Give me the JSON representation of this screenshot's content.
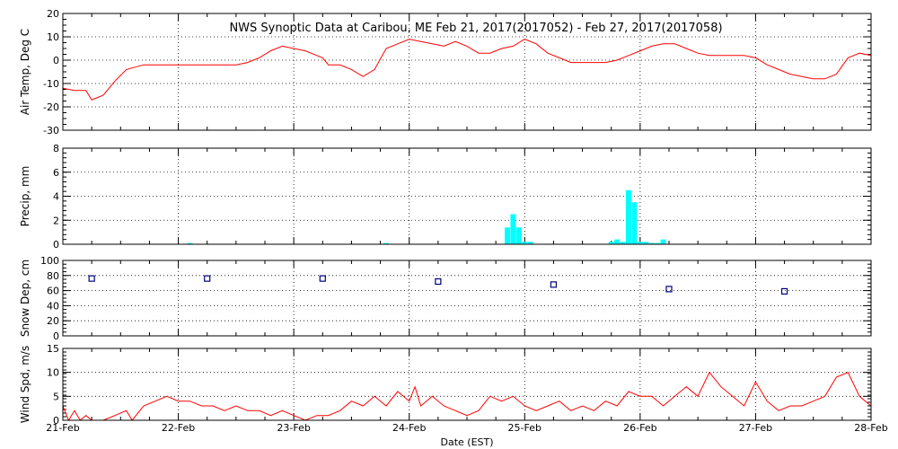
{
  "title": "NWS Synoptic Data at Caribou, ME   Feb 21, 2017(2017052) - Feb 27, 2017(2017058)",
  "x_axis": {
    "label": "Date (EST)",
    "ticks": [
      "21-Feb",
      "22-Feb",
      "23-Feb",
      "24-Feb",
      "25-Feb",
      "26-Feb",
      "27-Feb",
      "28-Feb"
    ]
  },
  "colors": {
    "temp": "#ff0000",
    "precip": "#00ffff",
    "snow": "#000080",
    "wind": "#ff0000"
  },
  "chart_data": [
    {
      "type": "line",
      "ylabel": "Air Temp, Deg C",
      "ylim": [
        -30,
        20
      ],
      "yticks": [
        -30,
        -20,
        -10,
        0,
        10,
        20
      ],
      "grid": true,
      "series": [
        {
          "x": [
            0.0,
            0.1,
            0.2,
            0.25,
            0.3,
            0.35,
            0.45,
            0.55,
            0.7,
            0.9,
            1.1,
            1.3,
            1.5,
            1.6,
            1.7,
            1.8,
            1.9,
            2.0,
            2.1,
            2.2,
            2.25,
            2.3,
            2.4,
            2.5,
            2.6,
            2.7,
            2.8,
            2.9,
            3.0,
            3.1,
            3.2,
            3.3,
            3.4,
            3.5,
            3.6,
            3.7,
            3.8,
            3.9,
            4.0,
            4.1,
            4.2,
            4.3,
            4.4,
            4.5,
            4.6,
            4.7,
            4.8,
            4.9,
            5.0,
            5.1,
            5.2,
            5.3,
            5.4,
            5.5,
            5.6,
            5.7,
            5.8,
            5.9,
            6.0,
            6.1,
            6.2,
            6.3,
            6.4,
            6.5,
            6.6,
            6.7,
            6.8,
            6.9,
            7.0
          ],
          "y": [
            -12,
            -13,
            -13,
            -17,
            -16,
            -15,
            -9,
            -4,
            -2,
            -2,
            -2,
            -2,
            -2,
            -1,
            1,
            4,
            6,
            5,
            4,
            2,
            1,
            -2,
            -2,
            -4,
            -7,
            -4,
            5,
            7,
            9,
            8,
            7,
            6,
            8,
            6,
            3,
            3,
            5,
            6,
            9,
            7,
            3,
            1,
            -1,
            -1,
            -1,
            -1,
            0,
            2,
            4,
            6,
            7,
            7,
            5,
            3,
            2,
            2,
            2,
            2,
            1,
            -2,
            -4,
            -6,
            -7,
            -8,
            -8,
            -6,
            1,
            3,
            2
          ]
        }
      ]
    },
    {
      "type": "bar",
      "ylabel": "Precip, mm",
      "ylim": [
        0,
        8
      ],
      "yticks": [
        0,
        2,
        4,
        6,
        8
      ],
      "grid": true,
      "x": [
        1.1,
        2.8,
        3.85,
        3.9,
        3.95,
        4.0,
        4.05,
        4.75,
        4.8,
        4.85,
        4.9,
        4.95,
        5.0,
        5.05,
        5.1,
        5.15,
        5.2
      ],
      "values": [
        0.1,
        0.1,
        1.4,
        2.5,
        1.4,
        0.2,
        0.2,
        0.2,
        0.4,
        0.2,
        4.5,
        3.5,
        0.2,
        0.2,
        0.1,
        0.1,
        0.4
      ]
    },
    {
      "type": "scatter",
      "ylabel": "Snow Dep, cm",
      "ylim": [
        0,
        100
      ],
      "yticks": [
        0,
        20,
        40,
        60,
        80,
        100
      ],
      "grid": true,
      "x": [
        0.25,
        1.25,
        2.25,
        3.25,
        4.25,
        5.25,
        6.25
      ],
      "y": [
        76,
        76,
        76,
        72,
        68,
        62,
        59
      ]
    },
    {
      "type": "line",
      "ylabel": "Wind Spd, m/s",
      "ylim": [
        0,
        15
      ],
      "yticks": [
        0,
        5,
        10,
        15
      ],
      "grid": true,
      "series": [
        {
          "x": [
            0.0,
            0.05,
            0.1,
            0.15,
            0.2,
            0.25,
            0.3,
            0.35,
            0.45,
            0.55,
            0.6,
            0.7,
            0.8,
            0.9,
            1.0,
            1.1,
            1.2,
            1.3,
            1.4,
            1.5,
            1.6,
            1.7,
            1.8,
            1.9,
            2.0,
            2.1,
            2.2,
            2.3,
            2.4,
            2.5,
            2.6,
            2.7,
            2.8,
            2.9,
            3.0,
            3.05,
            3.1,
            3.2,
            3.3,
            3.4,
            3.5,
            3.6,
            3.7,
            3.8,
            3.9,
            4.0,
            4.1,
            4.2,
            4.3,
            4.4,
            4.5,
            4.6,
            4.7,
            4.8,
            4.9,
            5.0,
            5.1,
            5.2,
            5.3,
            5.4,
            5.5,
            5.6,
            5.7,
            5.8,
            5.9,
            6.0,
            6.1,
            6.2,
            6.3,
            6.4,
            6.5,
            6.6,
            6.7,
            6.8,
            6.9,
            7.0
          ],
          "y": [
            3,
            0,
            2,
            0,
            1,
            0,
            0,
            0,
            1,
            2,
            0,
            3,
            4,
            5,
            4,
            4,
            3,
            3,
            2,
            3,
            2,
            2,
            1,
            2,
            1,
            0,
            1,
            1,
            2,
            4,
            3,
            5,
            3,
            6,
            4,
            7,
            3,
            5,
            3,
            2,
            1,
            2,
            5,
            4,
            5,
            3,
            2,
            3,
            4,
            2,
            3,
            2,
            4,
            3,
            6,
            5,
            5,
            3,
            5,
            7,
            5,
            10,
            7,
            5,
            3,
            8,
            4,
            2,
            3,
            3,
            4,
            5,
            9,
            10,
            5,
            3
          ]
        }
      ]
    }
  ]
}
